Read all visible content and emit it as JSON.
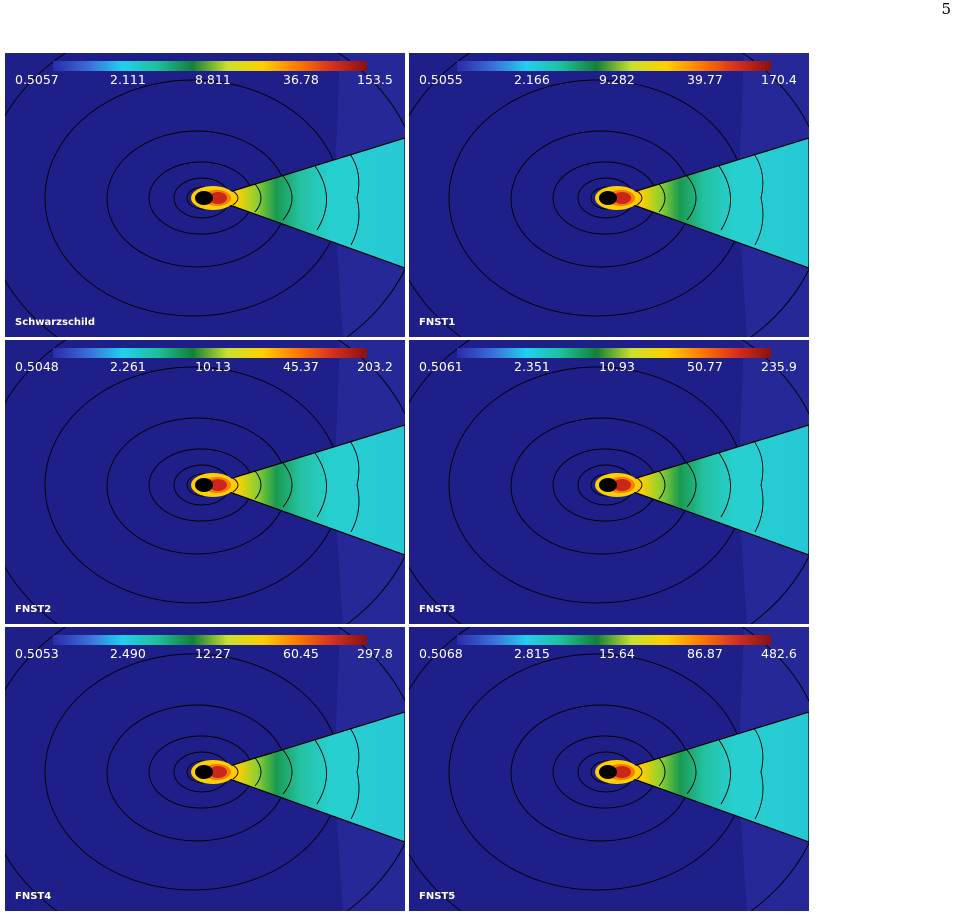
{
  "page_number": "5",
  "colorbar_colors": [
    "#2b2ba8",
    "#3b6cd8",
    "#22d0ee",
    "#1fbf9a",
    "#13803a",
    "#c8e030",
    "#ffd000",
    "#ff7a00",
    "#d63020",
    "#8a1010"
  ],
  "panels": [
    {
      "label": "Schwarzschild",
      "ticks": [
        "0.5057",
        "2.111",
        "8.811",
        "36.78",
        "153.5"
      ]
    },
    {
      "label": "FNST1",
      "ticks": [
        "0.5055",
        "2.166",
        "9.282",
        "39.77",
        "170.4"
      ]
    },
    {
      "label": "FNST2",
      "ticks": [
        "0.5048",
        "2.261",
        "10.13",
        "45.37",
        "203.2"
      ]
    },
    {
      "label": "FNST3",
      "ticks": [
        "0.5061",
        "2.351",
        "10.93",
        "50.77",
        "235.9"
      ]
    },
    {
      "label": "FNST4",
      "ticks": [
        "0.5053",
        "2.490",
        "12.27",
        "60.45",
        "297.8"
      ]
    },
    {
      "label": "FNST5",
      "ticks": [
        "0.5068",
        "2.815",
        "15.64",
        "86.87",
        "482.6"
      ]
    }
  ]
}
